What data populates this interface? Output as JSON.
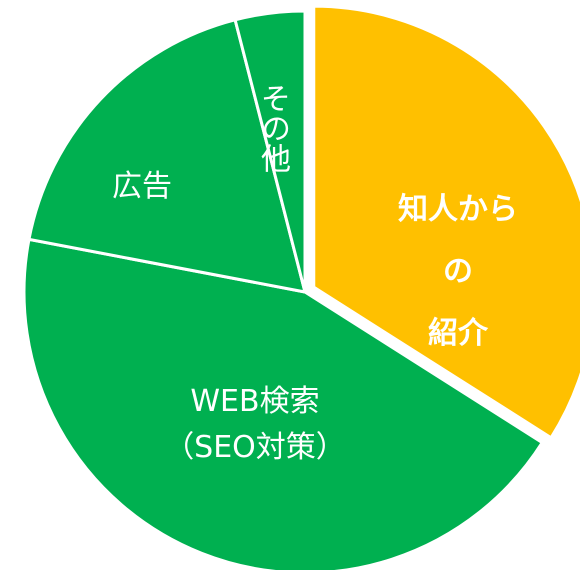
{
  "chart_data": {
    "type": "pie",
    "categories": [
      "知人からの\n紹介",
      "WEB検索\n（SEO対策）",
      "広告",
      "その他"
    ],
    "values": [
      34,
      44,
      18,
      4
    ],
    "colors": [
      "#ffc000",
      "#00b050",
      "#00b050",
      "#00b050"
    ],
    "explode": [
      true,
      false,
      false,
      false
    ]
  }
}
